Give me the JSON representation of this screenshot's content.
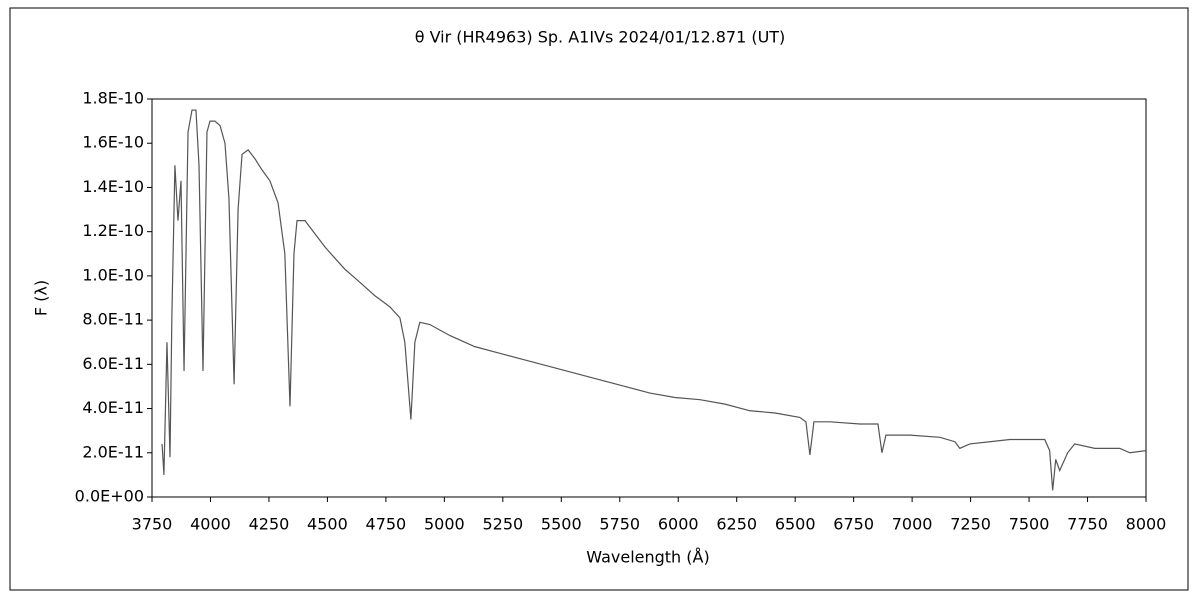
{
  "chart_data": {
    "type": "line",
    "title": "θ  Vir (HR4963)   Sp. A1IVs   2024/01/12.871 (UT)",
    "x_label": "Wavelength (Å)",
    "y_label": "F (λ)",
    "color": "#555555",
    "x": [
      3793,
      3801,
      3814,
      3827,
      3835,
      3848,
      3861,
      3874,
      3887,
      3904,
      3921,
      3938,
      3951,
      3968,
      3985,
      3998,
      4019,
      4041,
      4062,
      4079,
      4101,
      4118,
      4135,
      4161,
      4190,
      4220,
      4254,
      4289,
      4318,
      4340,
      4357,
      4370,
      4404,
      4447,
      4490,
      4532,
      4575,
      4618,
      4661,
      4703,
      4767,
      4810,
      4831,
      4857,
      4874,
      4895,
      4938,
      5024,
      5130,
      5237,
      5344,
      5451,
      5558,
      5665,
      5772,
      5879,
      5986,
      6093,
      6200,
      6307,
      6414,
      6520,
      6546,
      6563,
      6580,
      6649,
      6777,
      6854,
      6871,
      6888,
      6991,
      7119,
      7183,
      7204,
      7247,
      7332,
      7418,
      7567,
      7588,
      7601,
      7614,
      7631,
      7665,
      7695,
      7781,
      7888,
      7931,
      8000
    ],
    "values": [
      2.4e-11,
      1e-11,
      7e-11,
      1.8e-11,
      8.2e-11,
      1.5e-10,
      1.25e-10,
      1.43e-10,
      5.7e-11,
      1.65e-10,
      1.75e-10,
      1.75e-10,
      1.5e-10,
      5.7e-11,
      1.65e-10,
      1.7e-10,
      1.7e-10,
      1.68e-10,
      1.6e-10,
      1.35e-10,
      5.1e-11,
      1.3e-10,
      1.55e-10,
      1.57e-10,
      1.53e-10,
      1.48e-10,
      1.43e-10,
      1.33e-10,
      1.1e-10,
      4.1e-11,
      1.1e-10,
      1.25e-10,
      1.25e-10,
      1.19e-10,
      1.13e-10,
      1.08e-10,
      1.03e-10,
      9.9e-11,
      9.5e-11,
      9.1e-11,
      8.6e-11,
      8.1e-11,
      7e-11,
      3.5e-11,
      7e-11,
      7.9e-11,
      7.8e-11,
      7.3e-11,
      6.8e-11,
      6.5e-11,
      6.2e-11,
      5.9e-11,
      5.6e-11,
      5.3e-11,
      5e-11,
      4.7e-11,
      4.5e-11,
      4.4e-11,
      4.2e-11,
      3.9e-11,
      3.8e-11,
      3.6e-11,
      3.4e-11,
      1.9e-11,
      3.4e-11,
      3.4e-11,
      3.3e-11,
      3.3e-11,
      2e-11,
      2.8e-11,
      2.8e-11,
      2.7e-11,
      2.5e-11,
      2.2e-11,
      2.4e-11,
      2.5e-11,
      2.6e-11,
      2.6e-11,
      2.1e-11,
      3e-12,
      1.7e-11,
      1.2e-11,
      2e-11,
      2.4e-11,
      2.2e-11,
      2.2e-11,
      2e-11,
      2.1e-11
    ],
    "xlim": [
      3750,
      8000
    ],
    "xticks": [
      3750,
      4000,
      4250,
      4500,
      4750,
      5000,
      5250,
      5500,
      5750,
      6000,
      6250,
      6500,
      6750,
      7000,
      7250,
      7500,
      7750,
      8000
    ],
    "ylim": [
      0,
      1.8e-10
    ],
    "yticks": [
      {
        "value": 0,
        "label": "0.0E+00"
      },
      {
        "value": 2e-11,
        "label": "2.0E-11"
      },
      {
        "value": 4e-11,
        "label": "4.0E-11"
      },
      {
        "value": 6e-11,
        "label": "6.0E-11"
      },
      {
        "value": 8e-11,
        "label": "8.0E-11"
      },
      {
        "value": 1e-10,
        "label": "1.0E-10"
      },
      {
        "value": 1.2e-10,
        "label": "1.2E-10"
      },
      {
        "value": 1.4e-10,
        "label": "1.4E-10"
      },
      {
        "value": 1.6e-10,
        "label": "1.6E-10"
      },
      {
        "value": 1.8e-10,
        "label": "1.8E-10"
      }
    ]
  }
}
